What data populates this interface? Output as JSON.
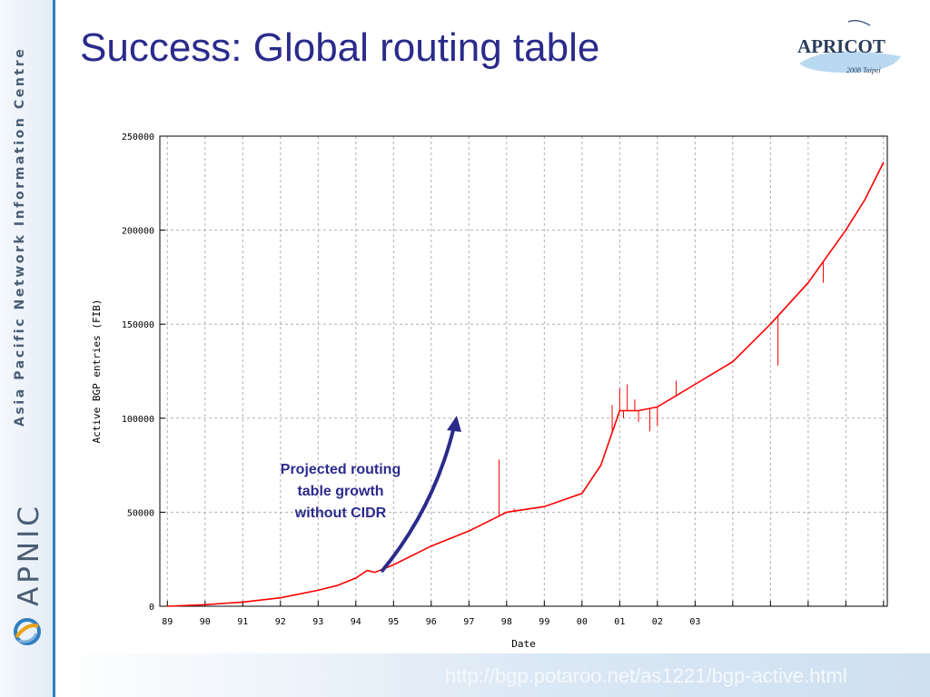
{
  "slide": {
    "title": "Success: Global routing table",
    "sidebar_org": "Asia Pacific Network Information Centre",
    "sidebar_brand": "APNIC",
    "footer_url": "http://bgp.potaroo.net/as1221/bgp-active.html"
  },
  "logo": {
    "name": "APRICOT",
    "tagline": "2008 Taipei"
  },
  "annotation": {
    "text": "Projected routing\ntable growth\nwithout CIDR",
    "color": "#2b2b8c"
  },
  "colors": {
    "title": "#2b2b8c",
    "series": "#ff0000",
    "sidebar_accent": "#2f7fbf",
    "annotation_arrow": "#2b2b8c"
  },
  "chart_data": {
    "type": "line",
    "xlabel": "Date",
    "ylabel": "Active BGP entries (FIB)",
    "xlim": [
      1988.8,
      2008.1
    ],
    "ylim": [
      0,
      250000
    ],
    "yticks": [
      0,
      50000,
      100000,
      150000,
      200000,
      250000
    ],
    "xticks": [
      {
        "value": 1989,
        "label": "89"
      },
      {
        "value": 1990,
        "label": "90"
      },
      {
        "value": 1991,
        "label": "91"
      },
      {
        "value": 1992,
        "label": "92"
      },
      {
        "value": 1993,
        "label": "93"
      },
      {
        "value": 1994,
        "label": "94"
      },
      {
        "value": 1995,
        "label": "95"
      },
      {
        "value": 1996,
        "label": "96"
      },
      {
        "value": 1997,
        "label": "97"
      },
      {
        "value": 1998,
        "label": "98"
      },
      {
        "value": 1999,
        "label": "99"
      },
      {
        "value": 2000,
        "label": "00"
      },
      {
        "value": 2001,
        "label": "01"
      },
      {
        "value": 2002,
        "label": "02"
      },
      {
        "value": 2003,
        "label": "03"
      },
      {
        "value": 2004,
        "label": ""
      },
      {
        "value": 2005,
        "label": ""
      },
      {
        "value": 2006,
        "label": ""
      },
      {
        "value": 2007,
        "label": ""
      },
      {
        "value": 2008,
        "label": ""
      }
    ],
    "grid": true,
    "series": [
      {
        "color": "#ff0000",
        "points": [
          [
            1989.0,
            0
          ],
          [
            1990.0,
            800
          ],
          [
            1991.0,
            2200
          ],
          [
            1992.0,
            4500
          ],
          [
            1993.0,
            8500
          ],
          [
            1993.5,
            11000
          ],
          [
            1994.0,
            15000
          ],
          [
            1994.3,
            19000
          ],
          [
            1994.5,
            18000
          ],
          [
            1995.0,
            22000
          ],
          [
            1996.0,
            32000
          ],
          [
            1997.0,
            40000
          ],
          [
            1997.5,
            45000
          ],
          [
            1998.0,
            50000
          ],
          [
            1999.0,
            53000
          ],
          [
            2000.0,
            60000
          ],
          [
            2000.5,
            75000
          ],
          [
            2001.0,
            104000
          ],
          [
            2001.5,
            104000
          ],
          [
            2002.0,
            106000
          ],
          [
            2002.5,
            112000
          ],
          [
            2003.0,
            118000
          ],
          [
            2004.0,
            130000
          ],
          [
            2005.0,
            150000
          ],
          [
            2006.0,
            172000
          ],
          [
            2007.0,
            200000
          ],
          [
            2007.5,
            216000
          ],
          [
            2008.0,
            236000
          ]
        ]
      }
    ],
    "spikes": [
      [
        1997.8,
        78000
      ],
      [
        1998.2,
        52000
      ],
      [
        2000.8,
        107000
      ],
      [
        2001.0,
        116000
      ],
      [
        2001.1,
        100000
      ],
      [
        2001.2,
        118000
      ],
      [
        2001.4,
        110000
      ],
      [
        2001.5,
        98000
      ],
      [
        2001.8,
        93000
      ],
      [
        2002.0,
        96000
      ],
      [
        2002.5,
        120000
      ],
      [
        2005.2,
        128000
      ],
      [
        2005.3,
        156000
      ],
      [
        2006.4,
        172000
      ],
      [
        2007.0,
        200000
      ]
    ]
  }
}
